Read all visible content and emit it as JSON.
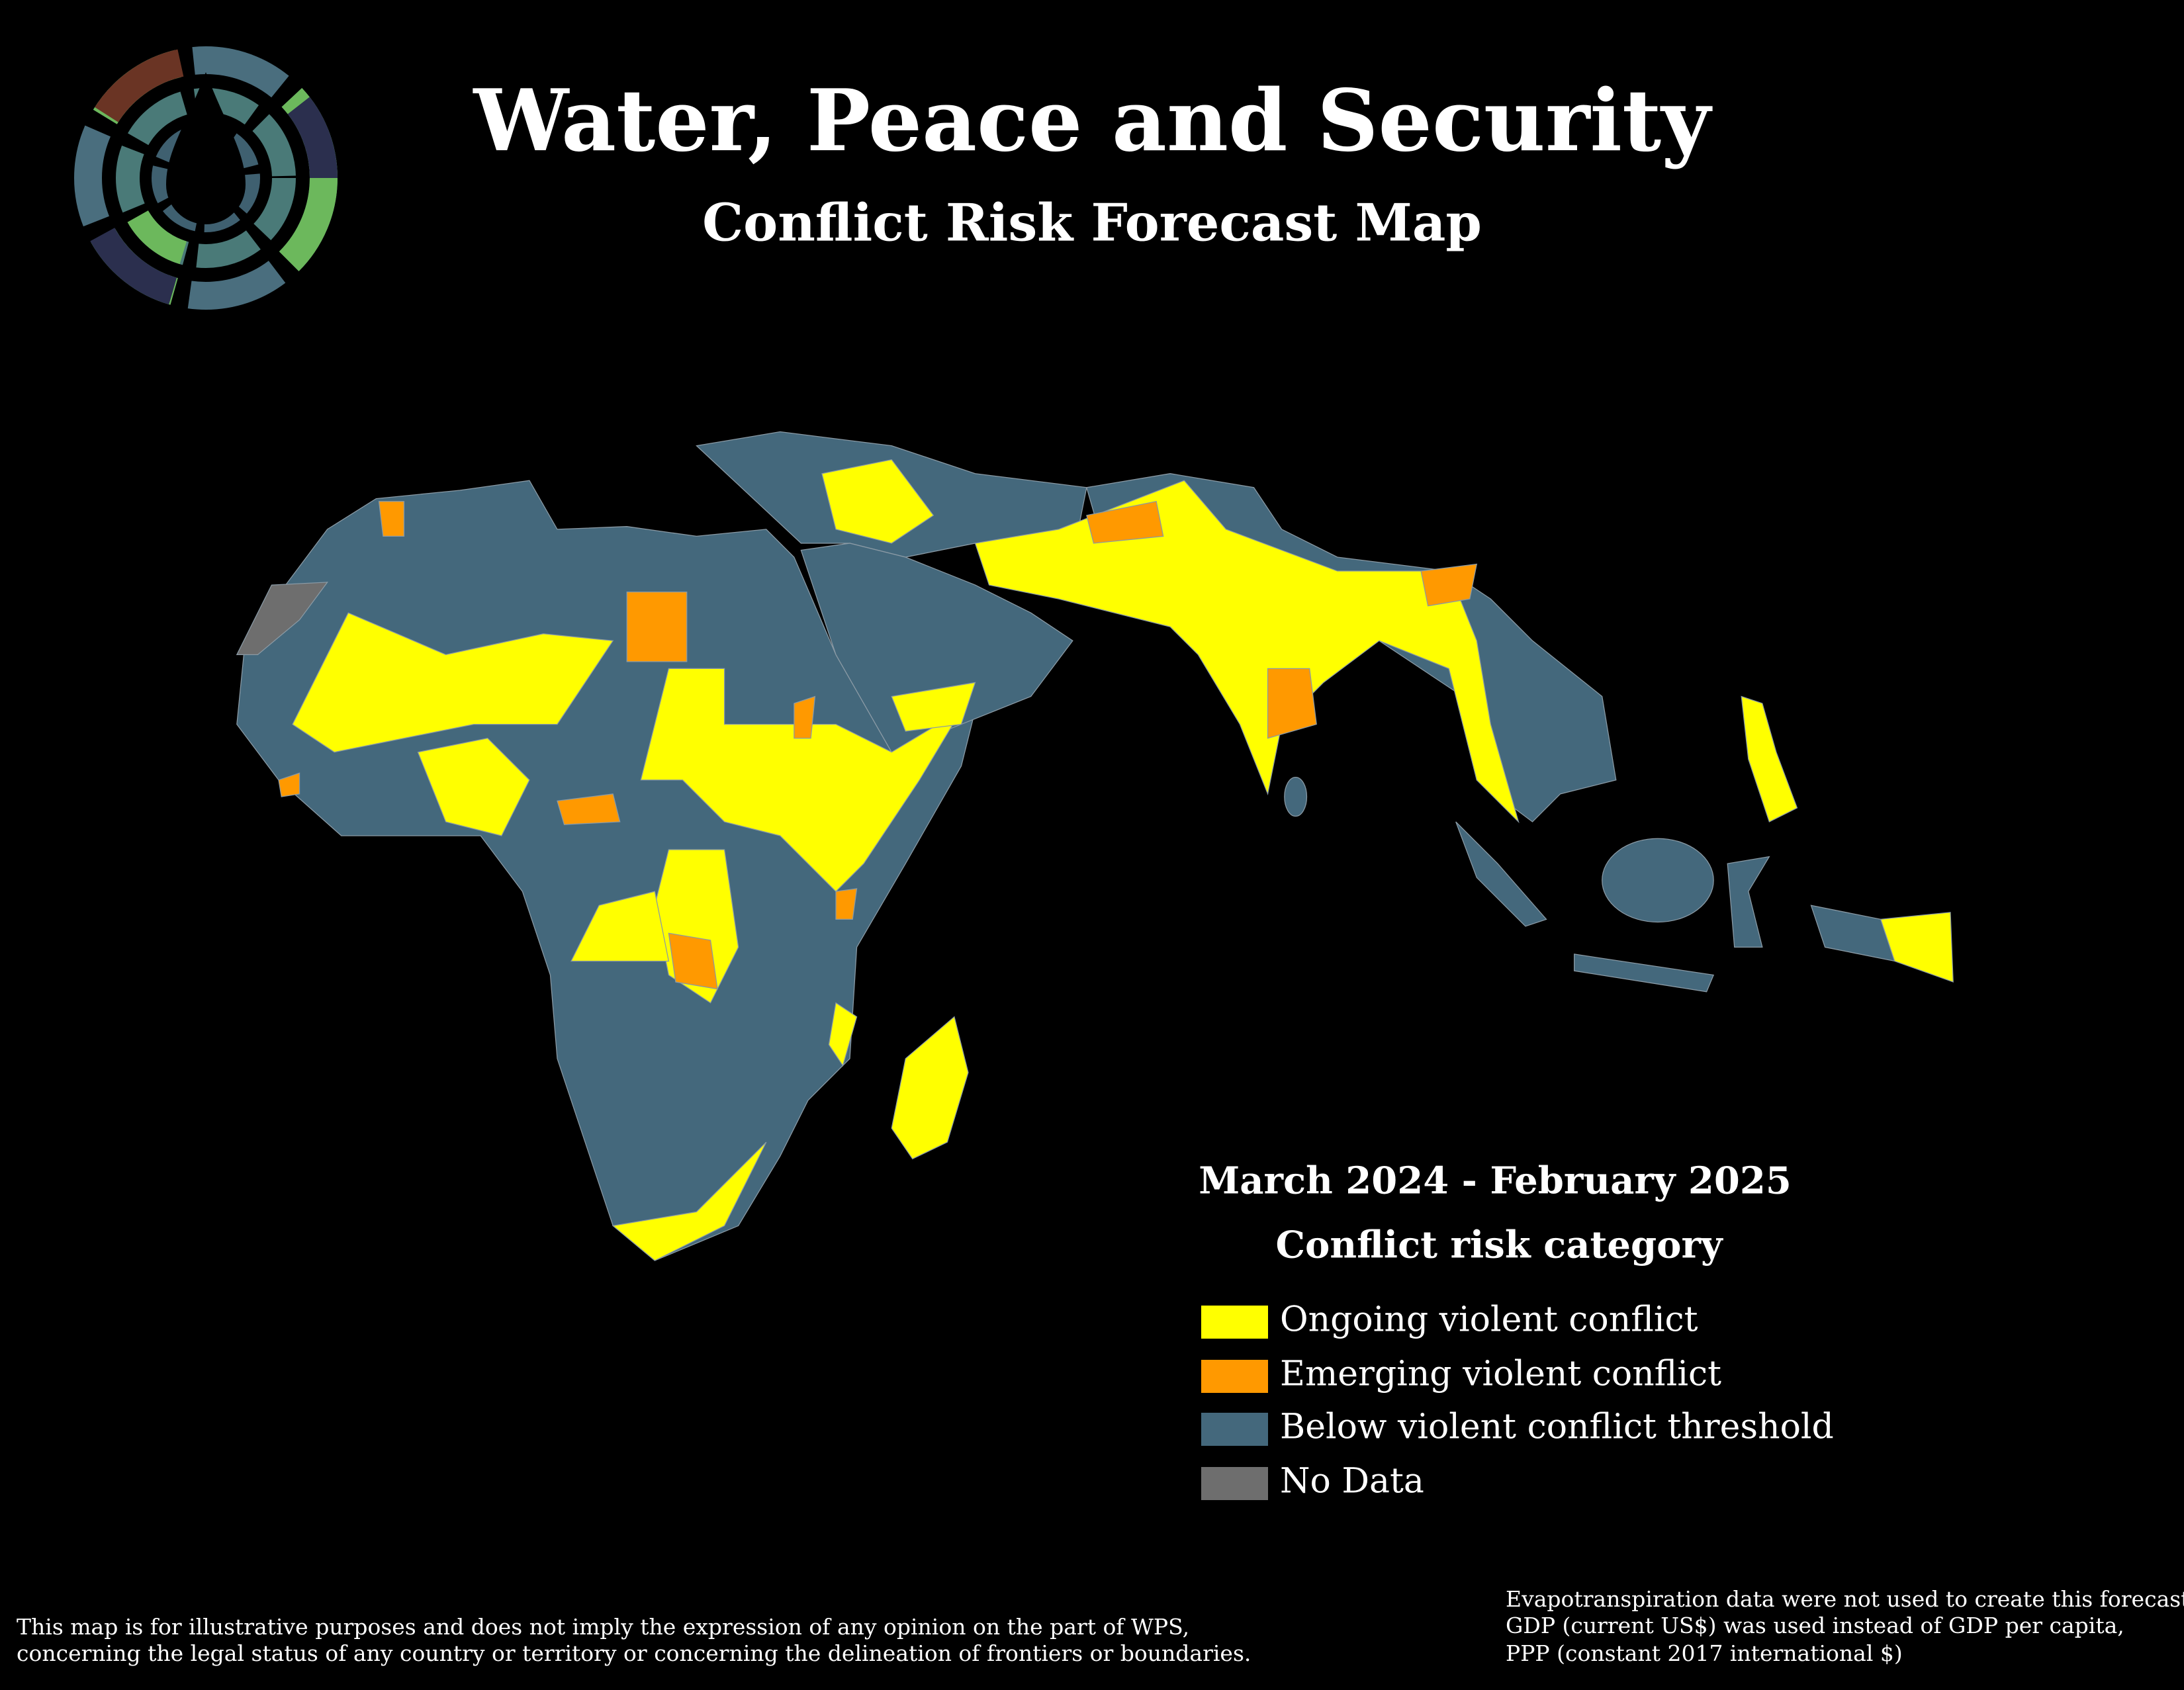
{
  "header": {
    "title": "Water, Peace and Security",
    "subtitle": "Conflict Risk Forecast Map"
  },
  "legend": {
    "period": "March 2024 - February 2025",
    "title": "Conflict risk category",
    "items": [
      {
        "label": "Ongoing violent conflict",
        "color": "#ffff00"
      },
      {
        "label": "Emerging violent conflict",
        "color": "#ff9900"
      },
      {
        "label": "Below violent conflict threshold",
        "color": "#44687c"
      },
      {
        "label": "No Data",
        "color": "#6e6e6e"
      }
    ]
  },
  "footer": {
    "disclaimer": [
      "This map is for illustrative purposes and does not imply the expression of any opinion on the part of WPS,",
      "concerning the legal status of any country or territory or concerning the delineation of frontiers or boundaries."
    ],
    "notes": [
      "Evapotranspiration data were not used to create this forecast",
      "GDP (current US$) was used instead of GDP per capita,",
      "PPP (constant 2017 international $)"
    ]
  }
}
